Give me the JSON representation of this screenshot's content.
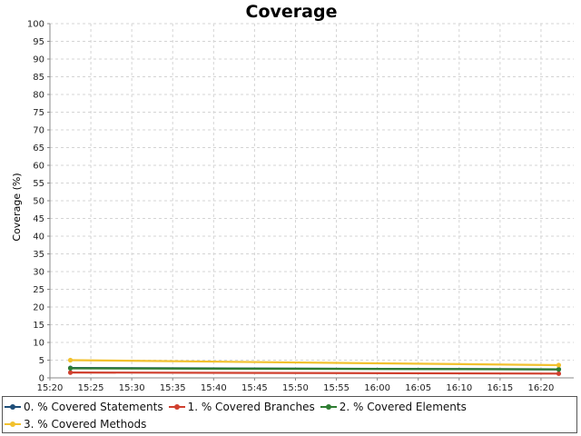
{
  "chart_data": {
    "type": "line",
    "title": "Coverage",
    "xlabel": "",
    "ylabel": "Coverage (%)",
    "ylim": [
      0,
      100
    ],
    "yticks": [
      0,
      5,
      10,
      15,
      20,
      25,
      30,
      35,
      40,
      45,
      50,
      55,
      60,
      65,
      70,
      75,
      80,
      85,
      90,
      95,
      100
    ],
    "xticks": [
      "15:20",
      "15:25",
      "15:30",
      "15:35",
      "15:40",
      "15:45",
      "15:50",
      "15:55",
      "16:00",
      "16:05",
      "16:10",
      "16:15",
      "16:20"
    ],
    "xlim": [
      "15:20",
      "16:24"
    ],
    "x": [
      "15:22:30",
      "16:22:10"
    ],
    "grid": true,
    "legend": "bottom",
    "series": [
      {
        "name": "0. % Covered Statements",
        "color": "#1f4e79",
        "values": [
          2.8,
          2.4
        ]
      },
      {
        "name": "1. % Covered Branches",
        "color": "#d0402f",
        "values": [
          1.5,
          1.2
        ]
      },
      {
        "name": "2. % Covered Elements",
        "color": "#2e7d32",
        "values": [
          2.7,
          2.4
        ]
      },
      {
        "name": "3. % Covered Methods",
        "color": "#f2c12e",
        "values": [
          5.0,
          3.6
        ]
      }
    ]
  }
}
